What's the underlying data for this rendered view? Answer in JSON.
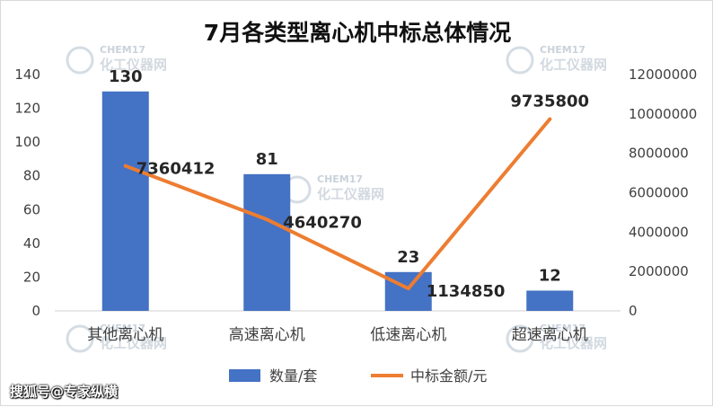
{
  "chart_data": {
    "type": "bar",
    "title": "7月各类型离心机中标总体情况",
    "categories": [
      "其他离心机",
      "高速离心机",
      "低速离心机",
      "超速离心机"
    ],
    "series": [
      {
        "name": "数量/套",
        "type": "bar",
        "axis": "left",
        "color": "#4472C4",
        "values": [
          130,
          81,
          23,
          12
        ],
        "labels": [
          "130",
          "81",
          "23",
          "12"
        ]
      },
      {
        "name": "中标金额/元",
        "type": "line",
        "axis": "right",
        "color": "#ED7D31",
        "values": [
          7360412,
          4640270,
          1134850,
          9735800
        ],
        "labels": [
          "7360412",
          "4640270",
          "1134850",
          "9735800"
        ]
      }
    ],
    "y_left": {
      "min": 0,
      "max": 140,
      "ticks": [
        "0",
        "20",
        "40",
        "60",
        "80",
        "100",
        "120",
        "140"
      ]
    },
    "y_right": {
      "min": 0,
      "max": 12000000,
      "ticks": [
        "0",
        "2000000",
        "4000000",
        "6000000",
        "8000000",
        "10000000",
        "12000000"
      ]
    },
    "grid": false,
    "legend_position": "bottom"
  },
  "watermark": {
    "en": "CHEM17",
    "cn": "化工仪器网"
  },
  "source_label": "搜狐号@专家纵横"
}
